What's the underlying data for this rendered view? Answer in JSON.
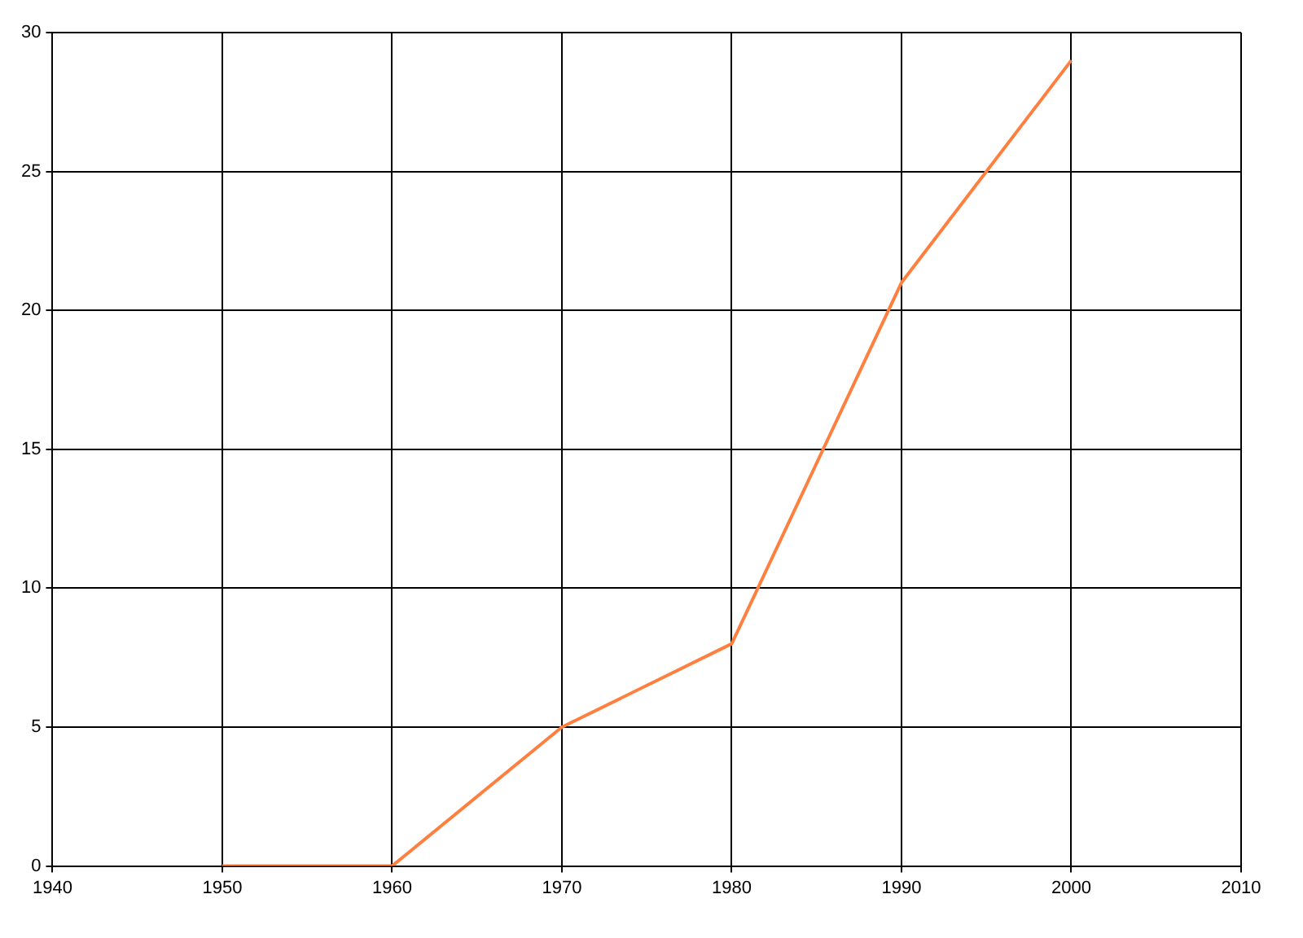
{
  "chart_data": {
    "type": "line",
    "x": [
      1950,
      1960,
      1970,
      1980,
      1990,
      2000
    ],
    "series": [
      {
        "color": "#ff7f3f",
        "values": [
          0,
          0,
          5,
          8,
          21,
          29
        ]
      }
    ],
    "xlim": [
      1940,
      2010
    ],
    "xticks": [
      1940,
      1950,
      1960,
      1970,
      1980,
      1990,
      2000,
      2010
    ],
    "ylim": [
      0,
      30
    ],
    "yticks": [
      0,
      5,
      10,
      15,
      20,
      25,
      30
    ],
    "grid": true,
    "legend": false,
    "marker": "none",
    "line_style": "solid"
  }
}
